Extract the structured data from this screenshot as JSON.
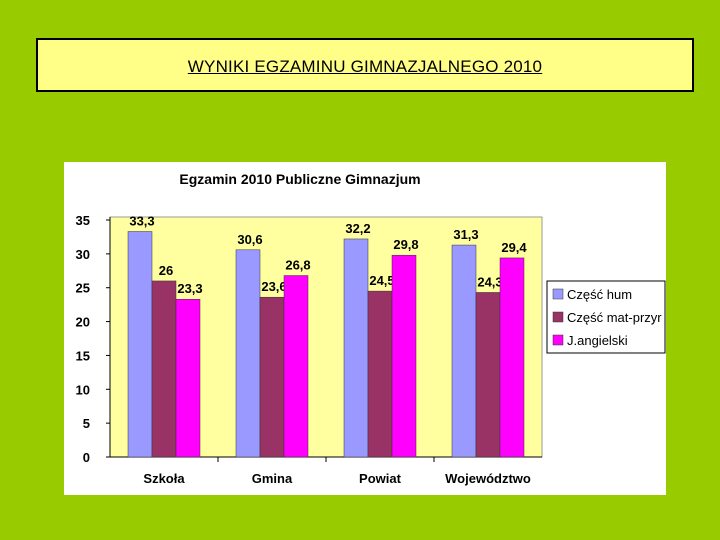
{
  "slide": {
    "title": "WYNIKI EGZAMINU GIMNAZJALNEGO 2010"
  },
  "colors": {
    "background": "#99cc00",
    "title_box": "#ffff88",
    "plot_area": "#ffffa0"
  },
  "chart_data": {
    "type": "bar",
    "title": "Egzamin 2010 Publiczne Gimnazjum",
    "categories": [
      "Szkoła",
      "Gmina",
      "Powiat",
      "Województwo"
    ],
    "series": [
      {
        "name": "Część hum",
        "color": "#9999ff",
        "values": [
          33.3,
          30.6,
          32.2,
          31.3
        ],
        "labels": [
          "33,3",
          "30,6",
          "32,2",
          "31,3"
        ]
      },
      {
        "name": "Część mat-przyr",
        "color": "#993366",
        "values": [
          26,
          23.6,
          24.5,
          24.3
        ],
        "labels": [
          "26",
          "23,6",
          "24,5",
          "24,3"
        ]
      },
      {
        "name": "J.angielski",
        "color": "#ff00ff",
        "values": [
          23.3,
          26.8,
          29.8,
          29.4
        ],
        "labels": [
          "23,3",
          "26,8",
          "29,8",
          "29,4"
        ]
      }
    ],
    "ylim": [
      0,
      35
    ],
    "yticks": [
      "0",
      "5",
      "10",
      "15",
      "20",
      "25",
      "30",
      "35"
    ],
    "grid": false,
    "legend": "right"
  }
}
